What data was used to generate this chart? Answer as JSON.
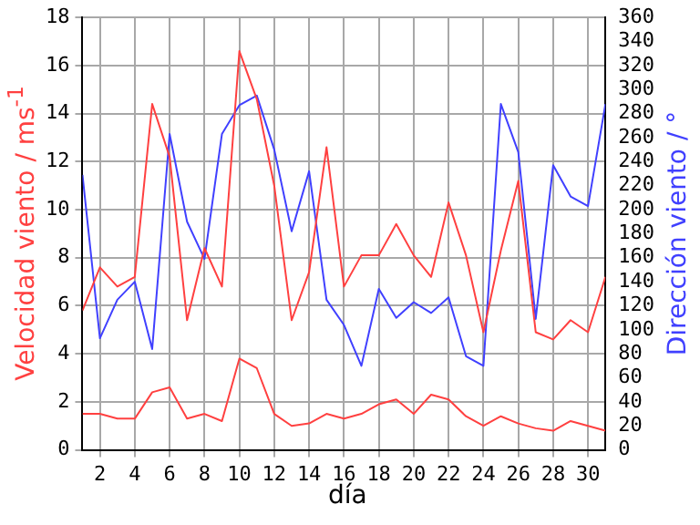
{
  "chart_data": {
    "type": "line",
    "xlabel": "día",
    "ylabel": "Velocidad viento / ms$^{-1}$",
    "y2label": "Dirección viento / °",
    "x": [
      1,
      2,
      3,
      4,
      5,
      6,
      7,
      8,
      9,
      10,
      11,
      12,
      13,
      14,
      15,
      16,
      17,
      18,
      19,
      20,
      21,
      22,
      23,
      24,
      25,
      26,
      27,
      28,
      29,
      30,
      31
    ],
    "series": [
      {
        "color": "#ff4040",
        "values": [
          5.8,
          7.6,
          6.8,
          7.2,
          14.4,
          12.2,
          5.4,
          8.4,
          6.8,
          16.6,
          14.6,
          11,
          5.4,
          7.4,
          12.6,
          6.8,
          8.1,
          8.1,
          9.4,
          8.1,
          7.2,
          10.3,
          8.1,
          4.9,
          8.3,
          11.2,
          4.9,
          4.6,
          5.4,
          4.9,
          7.2
        ]
      },
      {
        "color": "#ff4040",
        "values": [
          1.5,
          1.5,
          1.3,
          1.3,
          2.4,
          2.6,
          1.3,
          1.5,
          1.2,
          3.8,
          3.4,
          1.5,
          1.0,
          1.1,
          1.5,
          1.3,
          1.5,
          1.9,
          2.1,
          1.5,
          2.3,
          2.1,
          1.4,
          1.0,
          1.4,
          1.1,
          0.9,
          0.8,
          1.2,
          1.0,
          0.8
        ]
      },
      {
        "color": "#4040ff",
        "axis": "y2",
        "values": [
          229,
          93,
          125,
          140,
          84,
          263,
          190,
          159,
          263,
          287,
          295,
          250,
          182,
          232,
          125,
          104,
          70,
          134,
          110,
          123,
          114,
          127,
          78,
          70,
          288,
          248,
          109,
          237,
          211,
          203,
          288
        ]
      }
    ],
    "xlim": [
      1,
      31
    ],
    "xticks": [
      2,
      4,
      6,
      8,
      10,
      12,
      14,
      16,
      18,
      20,
      22,
      24,
      26,
      28,
      30
    ],
    "ylim": [
      0,
      18
    ],
    "yticks": [
      0,
      2,
      4,
      6,
      8,
      10,
      12,
      14,
      16,
      18
    ],
    "y2lim": [
      0,
      360
    ],
    "y2ticks": [
      0,
      20,
      40,
      60,
      80,
      100,
      120,
      140,
      160,
      180,
      200,
      220,
      240,
      260,
      280,
      300,
      320,
      340,
      360
    ],
    "grid": true,
    "marker": "none",
    "line_style": "solid"
  }
}
